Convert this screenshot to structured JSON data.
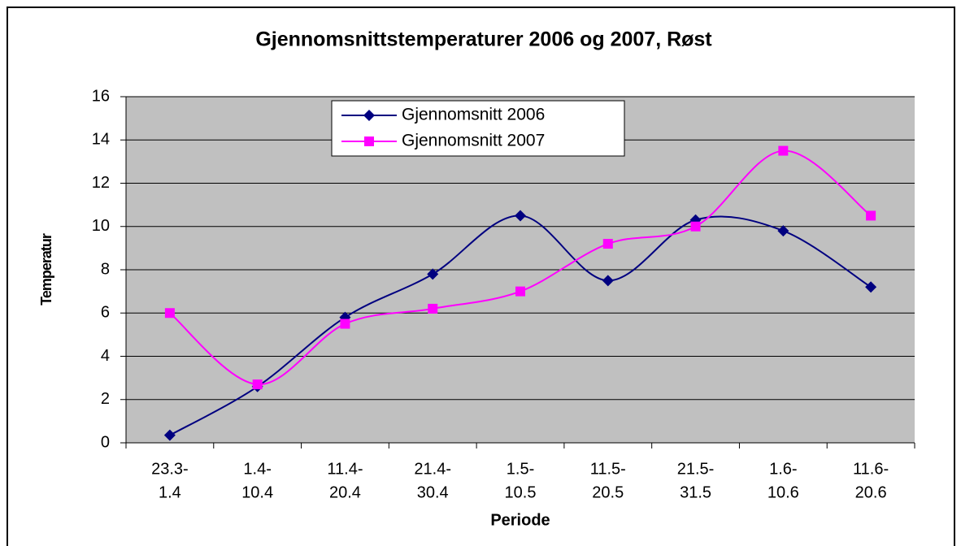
{
  "chart_data": {
    "type": "line",
    "title": "Gjennomsnittstemperaturer 2006 og 2007, Røst",
    "x_label": "Periode",
    "y_label": "Temperatur",
    "categories": [
      [
        "23.3-",
        "1.4"
      ],
      [
        "1.4-",
        "10.4"
      ],
      [
        "11.4-",
        "20.4"
      ],
      [
        "21.4-",
        "30.4"
      ],
      [
        "1.5-",
        "10.5"
      ],
      [
        "11.5-",
        "20.5"
      ],
      [
        "21.5-",
        "31.5"
      ],
      [
        "1.6-",
        "10.6"
      ],
      [
        "11.6-",
        "20.6"
      ]
    ],
    "series": [
      {
        "name": "Gjennomsnitt 2006",
        "color": "#000080",
        "marker": "diamond",
        "values": [
          0.35,
          2.6,
          5.8,
          7.8,
          10.5,
          7.5,
          10.3,
          9.8,
          7.2
        ]
      },
      {
        "name": "Gjennomsnitt 2007",
        "color": "#ff00ff",
        "marker": "square",
        "values": [
          6.0,
          2.7,
          5.5,
          6.2,
          7.0,
          9.2,
          10.0,
          13.5,
          10.5
        ]
      }
    ],
    "ylim": [
      0,
      16
    ],
    "yticks": [
      0,
      2,
      4,
      6,
      8,
      10,
      12,
      14,
      16
    ],
    "grid": true,
    "smooth": true,
    "legend": "top",
    "plot_background": "#c0c0c0"
  }
}
